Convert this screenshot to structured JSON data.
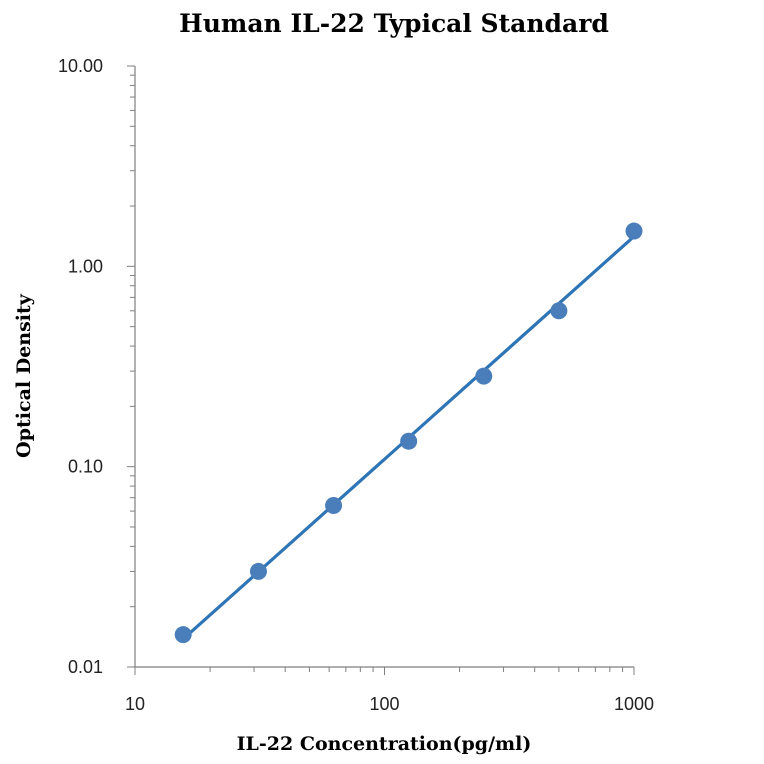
{
  "chart_data": {
    "type": "scatter",
    "title": "Human IL-22 Typical Standard",
    "xlabel": "IL-22 Concentration(pg/ml)",
    "ylabel": "Optical Density",
    "x_scale": "log",
    "y_scale": "log",
    "xlim": [
      10,
      1000
    ],
    "ylim": [
      0.01,
      10
    ],
    "x_tick_labels": [
      "10",
      "100",
      "1000"
    ],
    "y_tick_labels": [
      "0.01",
      "0.10",
      "1.00",
      "10.00"
    ],
    "grid": false,
    "legend": "none",
    "point_color": "#4a7ebb",
    "line_color": "#2e75b6",
    "points": [
      {
        "x": 15.6,
        "y": 0.0145
      },
      {
        "x": 31.25,
        "y": 0.03
      },
      {
        "x": 62.5,
        "y": 0.064
      },
      {
        "x": 125,
        "y": 0.134
      },
      {
        "x": 250,
        "y": 0.283
      },
      {
        "x": 500,
        "y": 0.6
      },
      {
        "x": 1000,
        "y": 1.5
      }
    ],
    "trendline": {
      "type": "power",
      "x": [
        15.6,
        1000
      ],
      "y": [
        0.0138,
        1.41
      ]
    }
  }
}
